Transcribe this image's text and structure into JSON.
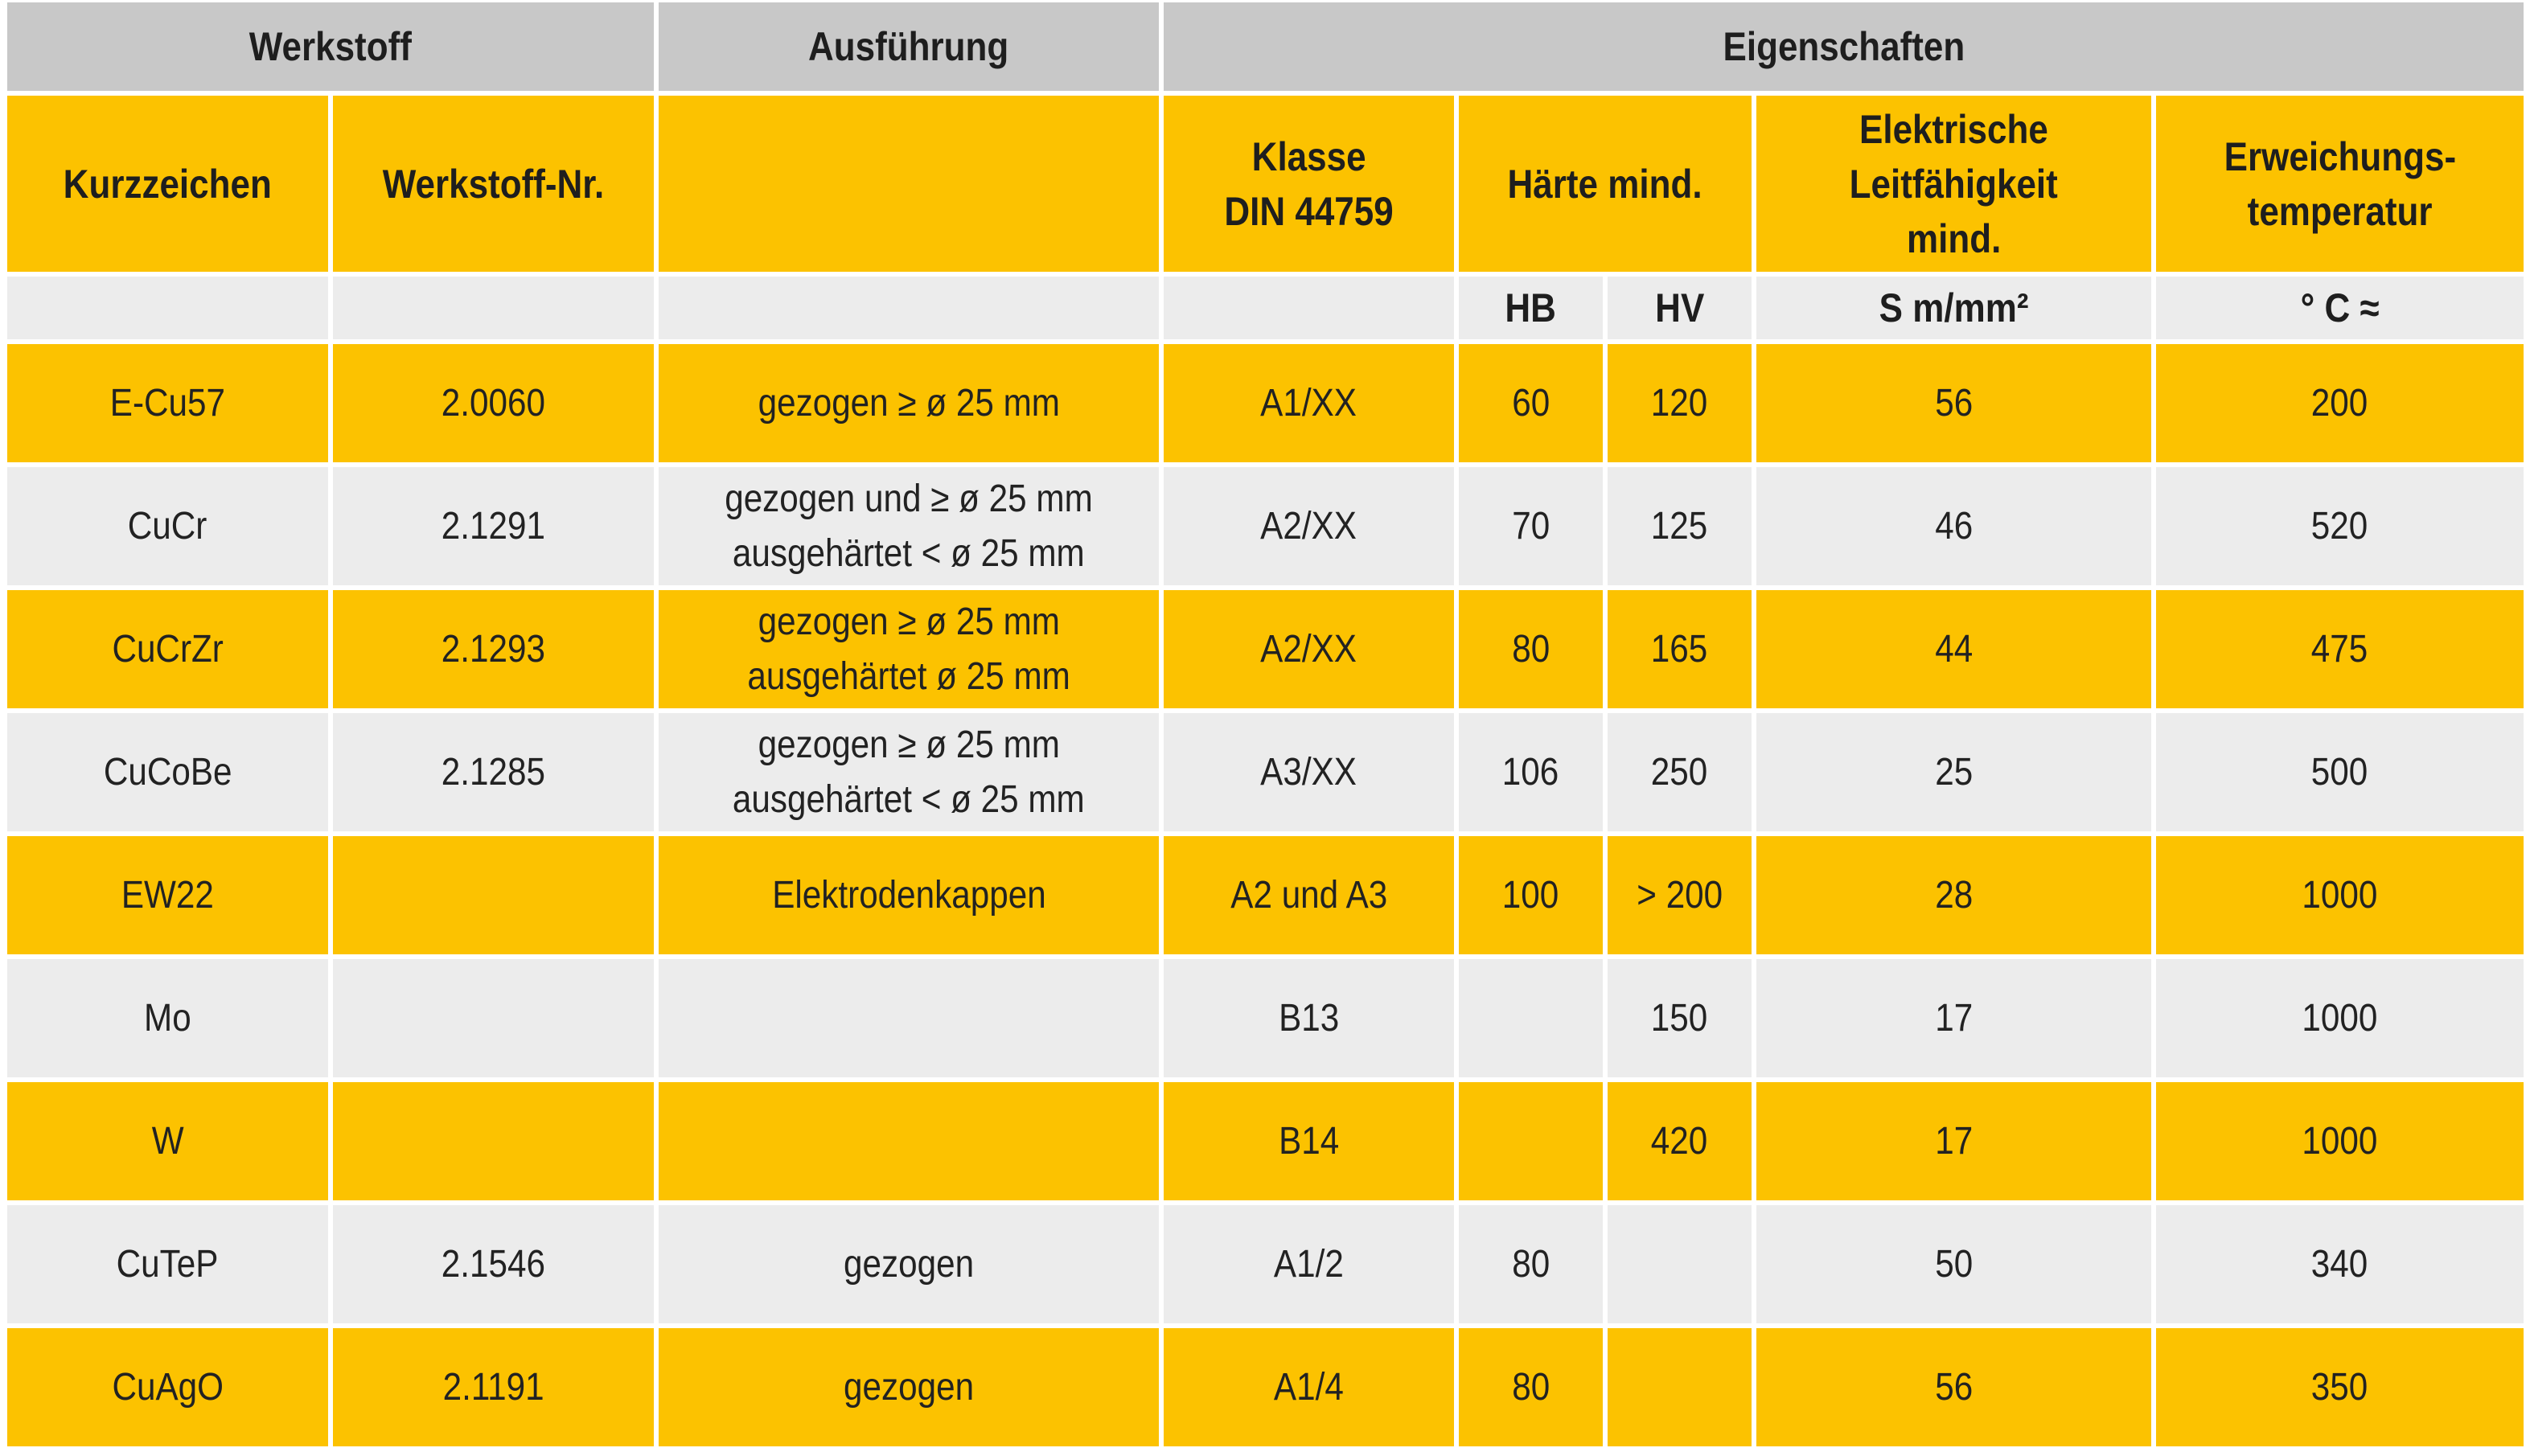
{
  "header": {
    "groups": [
      "Werkstoff",
      "Ausführung",
      "Eigenschaften"
    ],
    "columns": [
      [
        "Kurzzeichen"
      ],
      [
        "Werkstoff-Nr."
      ],
      [
        "Klasse",
        "DIN 44759"
      ],
      [
        "Härte mind."
      ],
      [
        "Elektrische",
        "Leitfähigkeit",
        "mind."
      ],
      [
        "Erweichungs-",
        "temperatur"
      ]
    ],
    "units": [
      "HB",
      "HV",
      "S m/mm²",
      "° C ≈"
    ]
  },
  "table": {
    "rows": [
      [
        "E-Cu57",
        "2.0060",
        [
          "gezogen ≥ ø 25 mm"
        ],
        "A1/XX",
        "60",
        "120",
        "56",
        "200"
      ],
      [
        "CuCr",
        "2.1291",
        [
          "gezogen und ≥ ø 25 mm",
          "ausgehärtet < ø 25 mm"
        ],
        "A2/XX",
        "70",
        "125",
        "46",
        "520"
      ],
      [
        "CuCrZr",
        "2.1293",
        [
          "gezogen ≥ ø 25 mm",
          "ausgehärtet ø 25 mm"
        ],
        "A2/XX",
        "80",
        "165",
        "44",
        "475"
      ],
      [
        "CuCoBe",
        "2.1285",
        [
          "gezogen ≥ ø 25 mm",
          "ausgehärtet < ø 25 mm"
        ],
        "A3/XX",
        "106",
        "250",
        "25",
        "500"
      ],
      [
        "EW22",
        null,
        [
          "Elektrodenkappen"
        ],
        "A2 und A3",
        "100",
        "> 200",
        "28",
        "1000"
      ],
      [
        "Mo",
        null,
        null,
        "B13",
        null,
        "150",
        "17",
        "1000"
      ],
      [
        "W",
        null,
        null,
        "B14",
        null,
        "420",
        "17",
        "1000"
      ],
      [
        "CuTeP",
        "2.1546",
        [
          "gezogen"
        ],
        "A1/2",
        "80",
        null,
        "50",
        "340"
      ],
      [
        "CuAgO",
        "2.1191",
        [
          "gezogen"
        ],
        "A1/4",
        "80",
        null,
        "56",
        "350"
      ]
    ]
  }
}
